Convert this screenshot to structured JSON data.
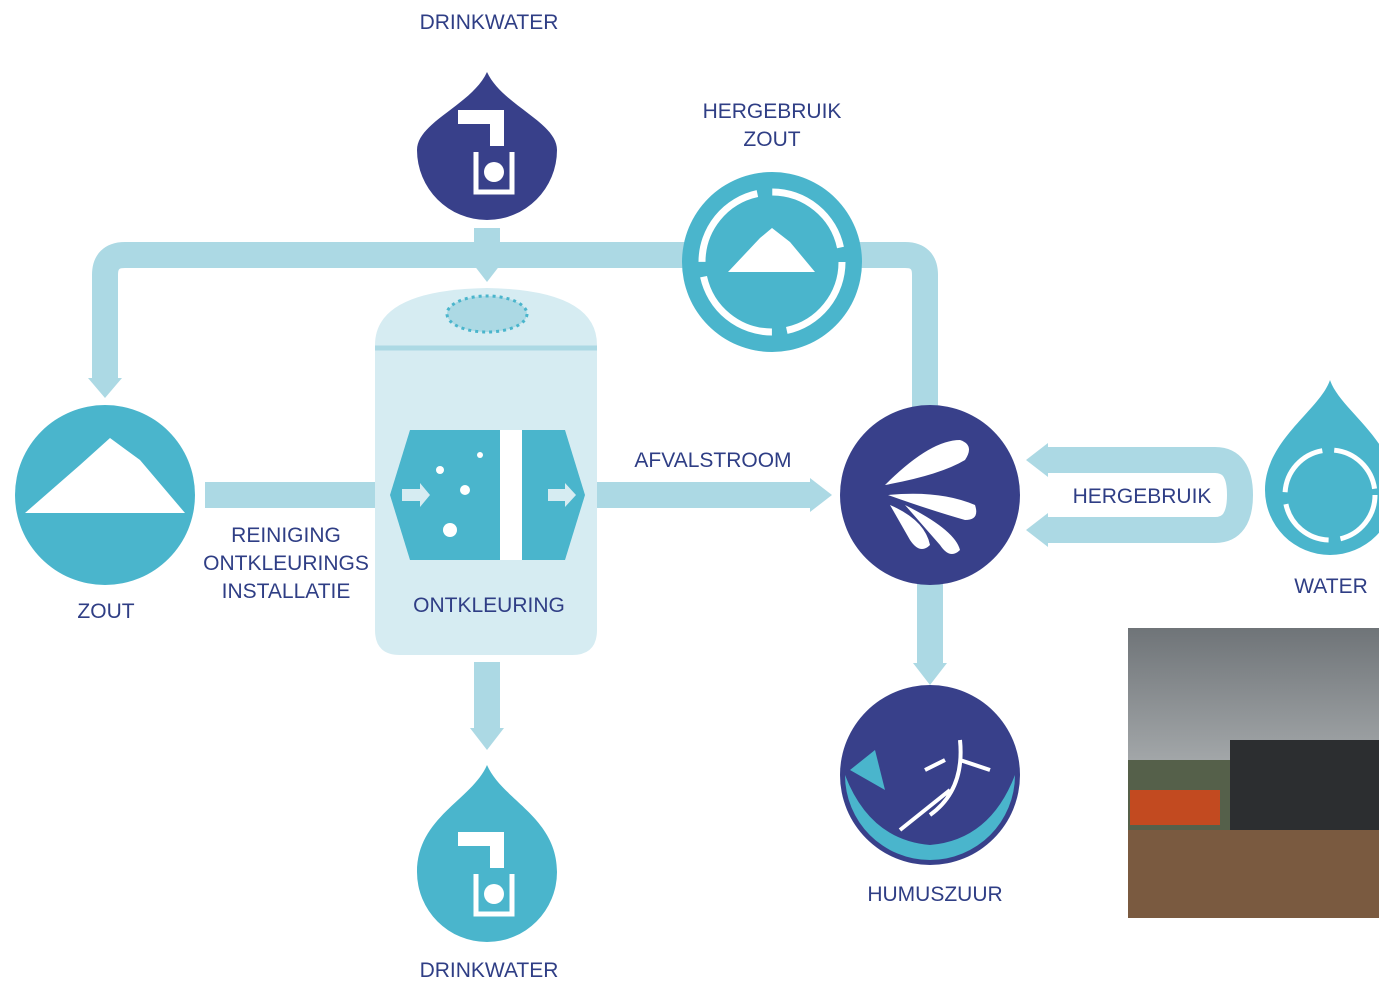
{
  "nodes": [
    {
      "label": [
        "DRINKWATER"
      ]
    },
    {
      "label": [
        "HERGEBRUIK",
        "ZOUT"
      ]
    },
    {
      "label": [
        "ZOUT"
      ]
    },
    {
      "label": [
        "REINIGING",
        "ONTKLEURINGS",
        "INSTALLATIE"
      ]
    },
    {
      "label": [
        "ONTKLEURING"
      ]
    },
    {
      "label": [
        "AFVALSTROOM"
      ]
    },
    {
      "label": [
        "HERGEBRUIK"
      ]
    },
    {
      "label": [
        "WATER"
      ]
    },
    {
      "label": [
        "HUMUSZUUR"
      ]
    },
    {
      "label": [
        "DRINKWATER"
      ]
    }
  ]
}
